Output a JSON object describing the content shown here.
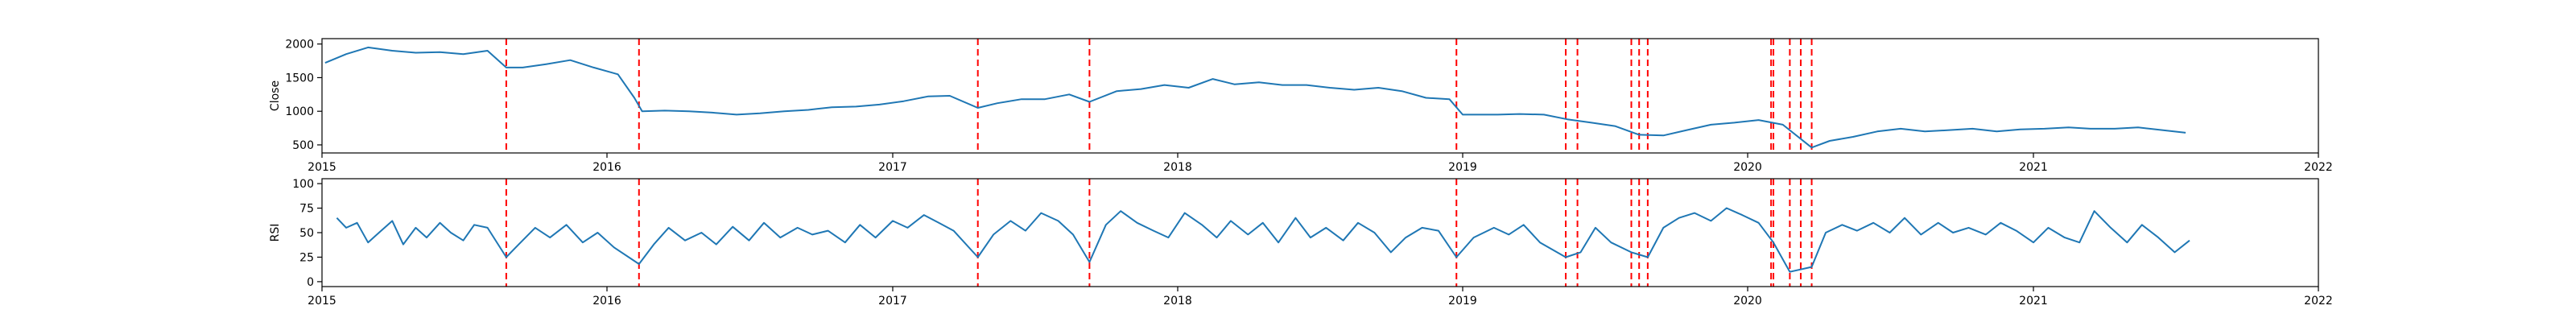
{
  "chart_data": [
    {
      "type": "line",
      "ylabel": "Close",
      "xlim": [
        "2015-01-01",
        "2022-01-01"
      ],
      "ylim": [
        380,
        2080
      ],
      "x_ticks": [
        "2015",
        "2016",
        "2017",
        "2018",
        "2019",
        "2020",
        "2021",
        "2022"
      ],
      "y_ticks": [
        500,
        1000,
        1500,
        2000
      ],
      "grid": false,
      "series_color": "#1f77b4",
      "marker_color": "#ff0000",
      "series": [
        {
          "x": [
            "2015-01-05",
            "2015-02-01",
            "2015-03-01",
            "2015-04-01",
            "2015-05-01",
            "2015-06-01",
            "2015-07-01",
            "2015-08-01",
            "2015-08-25",
            "2015-09-15",
            "2015-10-15",
            "2015-11-15",
            "2015-12-15",
            "2016-01-15",
            "2016-02-05",
            "2016-02-15",
            "2016-03-15",
            "2016-04-15",
            "2016-05-15",
            "2016-06-15",
            "2016-07-15",
            "2016-08-15",
            "2016-09-15",
            "2016-10-15",
            "2016-11-15",
            "2016-12-15",
            "2017-01-15",
            "2017-02-15",
            "2017-03-15",
            "2017-04-20",
            "2017-05-15",
            "2017-06-15",
            "2017-07-15",
            "2017-08-15",
            "2017-09-10",
            "2017-10-15",
            "2017-11-15",
            "2017-12-15",
            "2018-01-15",
            "2018-02-15",
            "2018-03-15",
            "2018-04-15",
            "2018-05-15",
            "2018-06-15",
            "2018-07-15",
            "2018-08-15",
            "2018-09-15",
            "2018-10-15",
            "2018-11-15",
            "2018-12-15",
            "2019-01-01",
            "2019-02-15",
            "2019-03-15",
            "2019-04-15",
            "2019-05-15",
            "2019-06-15",
            "2019-07-15",
            "2019-08-15",
            "2019-09-15",
            "2019-10-15",
            "2019-11-15",
            "2019-12-15",
            "2020-01-15",
            "2020-02-15",
            "2020-03-23",
            "2020-04-15",
            "2020-05-15",
            "2020-06-15",
            "2020-07-15",
            "2020-08-15",
            "2020-09-15",
            "2020-10-15",
            "2020-11-15",
            "2020-12-15",
            "2021-01-15",
            "2021-02-15",
            "2021-03-15",
            "2021-04-15",
            "2021-05-15",
            "2021-06-15",
            "2021-07-15"
          ],
          "y": [
            1720,
            1850,
            1950,
            1900,
            1870,
            1880,
            1850,
            1900,
            1650,
            1650,
            1700,
            1760,
            1650,
            1550,
            1200,
            1000,
            1010,
            1000,
            980,
            950,
            970,
            1000,
            1020,
            1060,
            1070,
            1100,
            1150,
            1220,
            1230,
            1050,
            1120,
            1180,
            1180,
            1250,
            1140,
            1300,
            1330,
            1390,
            1350,
            1480,
            1400,
            1430,
            1390,
            1390,
            1350,
            1320,
            1350,
            1300,
            1200,
            1180,
            950,
            950,
            960,
            950,
            880,
            830,
            780,
            650,
            640,
            720,
            800,
            830,
            870,
            800,
            460,
            560,
            620,
            700,
            740,
            700,
            720,
            740,
            700,
            730,
            740,
            760,
            740,
            740,
            760,
            720,
            680
          ]
        }
      ],
      "event_dates": [
        "2015-08-25",
        "2016-02-11",
        "2017-04-20",
        "2017-09-10",
        "2018-12-24",
        "2019-05-13",
        "2019-05-28",
        "2019-08-05",
        "2019-08-15",
        "2019-08-26",
        "2020-01-31",
        "2020-02-03",
        "2020-02-24",
        "2020-03-09",
        "2020-03-23"
      ]
    },
    {
      "type": "line",
      "ylabel": "RSI",
      "xlim": [
        "2015-01-01",
        "2022-01-01"
      ],
      "ylim": [
        -5,
        105
      ],
      "x_ticks": [
        "2015",
        "2016",
        "2017",
        "2018",
        "2019",
        "2020",
        "2021",
        "2022"
      ],
      "y_ticks": [
        0,
        25,
        50,
        75,
        100
      ],
      "grid": false,
      "series_color": "#1f77b4",
      "marker_color": "#ff0000",
      "series": [
        {
          "x": [
            "2015-01-20",
            "2015-02-01",
            "2015-02-15",
            "2015-03-01",
            "2015-03-15",
            "2015-04-01",
            "2015-04-15",
            "2015-05-01",
            "2015-05-15",
            "2015-06-01",
            "2015-06-15",
            "2015-07-01",
            "2015-07-15",
            "2015-08-01",
            "2015-08-25",
            "2015-09-10",
            "2015-10-01",
            "2015-10-20",
            "2015-11-10",
            "2015-12-01",
            "2015-12-20",
            "2016-01-10",
            "2016-02-11",
            "2016-03-01",
            "2016-03-20",
            "2016-04-10",
            "2016-05-01",
            "2016-05-20",
            "2016-06-10",
            "2016-07-01",
            "2016-07-20",
            "2016-08-10",
            "2016-09-01",
            "2016-09-20",
            "2016-10-10",
            "2016-11-01",
            "2016-11-20",
            "2016-12-10",
            "2017-01-01",
            "2017-01-20",
            "2017-02-10",
            "2017-03-01",
            "2017-03-20",
            "2017-04-20",
            "2017-05-10",
            "2017-06-01",
            "2017-06-20",
            "2017-07-10",
            "2017-08-01",
            "2017-08-20",
            "2017-09-10",
            "2017-10-01",
            "2017-10-20",
            "2017-11-10",
            "2017-12-01",
            "2017-12-20",
            "2018-01-10",
            "2018-02-01",
            "2018-02-20",
            "2018-03-10",
            "2018-04-01",
            "2018-04-20",
            "2018-05-10",
            "2018-06-01",
            "2018-06-20",
            "2018-07-10",
            "2018-08-01",
            "2018-08-20",
            "2018-09-10",
            "2018-10-01",
            "2018-10-20",
            "2018-11-10",
            "2018-12-01",
            "2018-12-24",
            "2019-01-15",
            "2019-02-10",
            "2019-03-01",
            "2019-03-20",
            "2019-04-10",
            "2019-05-13",
            "2019-06-01",
            "2019-06-20",
            "2019-07-10",
            "2019-08-05",
            "2019-08-26",
            "2019-09-15",
            "2019-10-05",
            "2019-10-25",
            "2019-11-15",
            "2019-12-05",
            "2019-12-25",
            "2020-01-15",
            "2020-02-03",
            "2020-02-24",
            "2020-03-23",
            "2020-04-10",
            "2020-05-01",
            "2020-05-20",
            "2020-06-10",
            "2020-07-01",
            "2020-07-20",
            "2020-08-10",
            "2020-09-01",
            "2020-09-20",
            "2020-10-10",
            "2020-11-01",
            "2020-11-20",
            "2020-12-10",
            "2021-01-01",
            "2021-01-20",
            "2021-02-10",
            "2021-03-01",
            "2021-03-20",
            "2021-04-10",
            "2021-05-01",
            "2021-05-20",
            "2021-06-10",
            "2021-07-01",
            "2021-07-20"
          ],
          "y": [
            65,
            55,
            60,
            40,
            50,
            62,
            38,
            55,
            45,
            60,
            50,
            42,
            58,
            55,
            25,
            38,
            55,
            45,
            58,
            40,
            50,
            35,
            18,
            38,
            55,
            42,
            50,
            38,
            56,
            42,
            60,
            45,
            55,
            48,
            52,
            40,
            58,
            45,
            62,
            55,
            68,
            60,
            52,
            25,
            48,
            62,
            52,
            70,
            62,
            48,
            20,
            58,
            72,
            60,
            52,
            45,
            70,
            58,
            45,
            62,
            48,
            60,
            40,
            65,
            45,
            55,
            42,
            60,
            50,
            30,
            45,
            55,
            52,
            25,
            45,
            55,
            48,
            58,
            40,
            25,
            30,
            55,
            40,
            30,
            25,
            55,
            65,
            70,
            62,
            75,
            68,
            60,
            40,
            10,
            15,
            50,
            58,
            52,
            60,
            50,
            65,
            48,
            60,
            50,
            55,
            48,
            60,
            52,
            40,
            55,
            45,
            40,
            72,
            55,
            40,
            58,
            45,
            30,
            42
          ]
        }
      ],
      "event_dates": [
        "2015-08-25",
        "2016-02-11",
        "2017-04-20",
        "2017-09-10",
        "2018-12-24",
        "2019-05-13",
        "2019-05-28",
        "2019-08-05",
        "2019-08-15",
        "2019-08-26",
        "2020-01-31",
        "2020-02-03",
        "2020-02-24",
        "2020-03-09",
        "2020-03-23"
      ]
    }
  ]
}
